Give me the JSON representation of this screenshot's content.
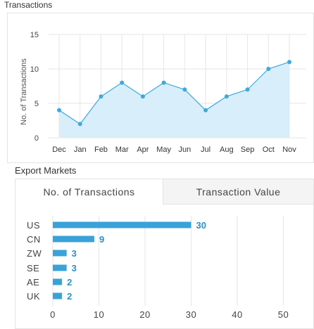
{
  "transactions_section": {
    "title": "Transactions"
  },
  "export_section": {
    "title": "Export Markets",
    "tabs": [
      {
        "label": "No. of Transactions",
        "active": true
      },
      {
        "label": "Transaction Value",
        "active": false
      }
    ]
  },
  "colors": {
    "line": "#3ea9dc",
    "area": "#d8eefa",
    "bar": "#3aa2d8",
    "bar_label": "#2e8fc6",
    "grid": "#e6e6e6"
  },
  "chart_data": [
    {
      "type": "area",
      "categories": [
        "Dec",
        "Jan",
        "Feb",
        "Mar",
        "Apr",
        "May",
        "Jun",
        "Jul",
        "Aug",
        "Sep",
        "Oct",
        "Nov"
      ],
      "values": [
        4,
        2,
        6,
        8,
        6,
        8,
        7,
        4,
        6,
        7,
        10,
        11
      ],
      "ylabel": "No. of Transactions",
      "ylim": [
        0,
        15
      ],
      "yticks": [
        0,
        5,
        10,
        15
      ],
      "grid": true
    },
    {
      "type": "bar",
      "orientation": "horizontal",
      "categories": [
        "US",
        "CN",
        "ZW",
        "SE",
        "AE",
        "UK"
      ],
      "values": [
        30,
        9,
        3,
        3,
        2,
        2
      ],
      "xlim": [
        0,
        55
      ],
      "xticks": [
        0,
        10,
        20,
        30,
        40,
        50
      ],
      "grid": true
    }
  ]
}
